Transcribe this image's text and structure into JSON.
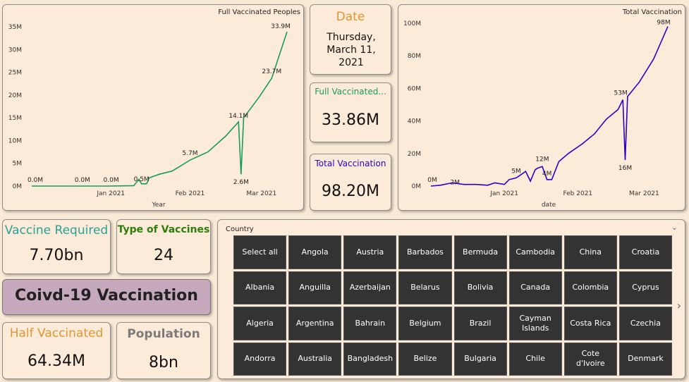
{
  "charts": {
    "full_vaccinated": {
      "title": "Full Vaccinated Peoples",
      "xlabel": "Year",
      "y_ticks": [
        "35M",
        "30M",
        "25M",
        "20M",
        "15M",
        "10M",
        "5M",
        "0M"
      ],
      "x_ticks": [
        "Jan 2021",
        "Feb 2021",
        "Mar 2021"
      ],
      "data_labels": [
        "0.0M",
        "0.0M",
        "0.0M",
        "0.5M",
        "5.7M",
        "14.1M",
        "2.6M",
        "23.7M",
        "33.9M"
      ],
      "color": "#1a9c5b"
    },
    "total_vaccination": {
      "title": "Total Vaccination",
      "xlabel": "date",
      "y_ticks": [
        "100M",
        "80M",
        "60M",
        "40M",
        "20M",
        "0M"
      ],
      "x_ticks": [
        "Jan 2021",
        "Feb 2021",
        "Mar 2021"
      ],
      "data_labels": [
        "0M",
        "2M",
        "5M",
        "12M",
        "4M",
        "53M",
        "16M",
        "98M"
      ],
      "color": "#2a00cc"
    }
  },
  "chart_data": [
    {
      "type": "line",
      "title": "Full Vaccinated Peoples",
      "xlabel": "Year",
      "ylabel": "",
      "ylim": [
        0,
        35
      ],
      "x": [
        "2020-12-01",
        "2020-12-10",
        "2020-12-20",
        "2020-12-31",
        "2021-01-10",
        "2021-01-12",
        "2021-01-13",
        "2021-01-15",
        "2021-01-16",
        "2021-01-20",
        "2021-01-25",
        "2021-02-01",
        "2021-02-08",
        "2021-02-15",
        "2021-02-20",
        "2021-02-21",
        "2021-02-22",
        "2021-02-28",
        "2021-03-05",
        "2021-03-11"
      ],
      "series": [
        {
          "values": [
            0.0,
            0.0,
            0.0,
            0.0,
            0.1,
            1.5,
            0.5,
            0.5,
            1.8,
            2.6,
            3.3,
            5.7,
            7.5,
            11.0,
            14.1,
            2.6,
            15.0,
            19.5,
            23.7,
            33.9
          ]
        }
      ]
    },
    {
      "type": "line",
      "title": "Total Vaccination",
      "xlabel": "date",
      "ylabel": "",
      "ylim": [
        0,
        100
      ],
      "x": [
        "2020-12-01",
        "2020-12-05",
        "2020-12-10",
        "2020-12-15",
        "2020-12-20",
        "2020-12-25",
        "2020-12-28",
        "2021-01-01",
        "2021-01-03",
        "2021-01-06",
        "2021-01-10",
        "2021-01-12",
        "2021-01-14",
        "2021-01-15",
        "2021-01-17",
        "2021-01-19",
        "2021-01-21",
        "2021-01-24",
        "2021-01-28",
        "2021-02-03",
        "2021-02-08",
        "2021-02-13",
        "2021-02-18",
        "2021-02-20",
        "2021-02-21",
        "2021-02-22",
        "2021-02-27",
        "2021-03-05",
        "2021-03-11"
      ],
      "series": [
        {
          "values": [
            0,
            0.5,
            2,
            1,
            1,
            0.5,
            2,
            1,
            4,
            5,
            9,
            3,
            10,
            11,
            12,
            4,
            4,
            15,
            20,
            26,
            32,
            41,
            47,
            53,
            16,
            55,
            64,
            78,
            98
          ]
        }
      ]
    }
  ],
  "kpis": {
    "date": {
      "title": "Date",
      "value": "Thursday, March 11, 2021"
    },
    "full_vaccinated": {
      "title": "Full Vaccinated...",
      "value": "33.86M"
    },
    "total_vaccination": {
      "title": "Total Vaccination",
      "value": "98.20M"
    },
    "vaccine_required": {
      "title": "Vaccine Required",
      "value": "7.70bn"
    },
    "type_of_vaccines": {
      "title": "Type of Vaccines",
      "value": "24"
    },
    "half_vaccinated": {
      "title": "Half Vaccinated",
      "value": "64.34M"
    },
    "population": {
      "title": "Population",
      "value": "8bn"
    }
  },
  "banner": {
    "title": "Coivd-19 Vaccination"
  },
  "slicer": {
    "label": "Country",
    "items": [
      "Select all",
      "Angola",
      "Austria",
      "Barbados",
      "Bermuda",
      "Cambodia",
      "China",
      "Croatia",
      "Albania",
      "Anguilla",
      "Azerbaijan",
      "Belarus",
      "Bolivia",
      "Canada",
      "Colombia",
      "Cyprus",
      "Algeria",
      "Argentina",
      "Bahrain",
      "Belgium",
      "Brazil",
      "Cayman Islands",
      "Costa Rica",
      "Czechia",
      "Andorra",
      "Australia",
      "Bangladesh",
      "Belize",
      "Bulgaria",
      "Chile",
      "Cote d'Ivoire",
      "Denmark"
    ]
  },
  "colors": {
    "background": "#f9ead5",
    "teal": "#2aa198",
    "green_title": "#2e7d0a",
    "orange": "#e29635",
    "blue_title": "#2a00cc",
    "banner_bg": "#c6a9bd",
    "tile_bg": "#333333"
  }
}
